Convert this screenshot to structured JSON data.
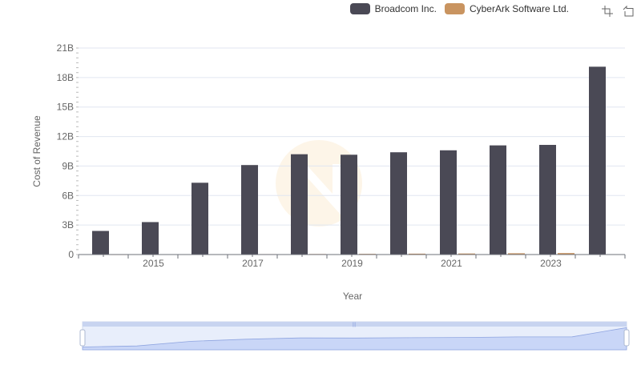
{
  "legend": [
    {
      "label": "Broadcom Inc.",
      "color": "#4a4955"
    },
    {
      "label": "CyberArk Software Ltd.",
      "color": "#c99460"
    }
  ],
  "toolbox": {
    "zoom_icon": "zoom-icon",
    "restore_icon": "restore-icon"
  },
  "chart_data": {
    "type": "bar",
    "xlabel": "Year",
    "ylabel": "Cost of Revenue",
    "categories": [
      "2014",
      "2015",
      "2016",
      "2017",
      "2018",
      "2019",
      "2020",
      "2021",
      "2022",
      "2023",
      "2024"
    ],
    "x_tick_labels": [
      "2015",
      "2017",
      "2019",
      "2021",
      "2023"
    ],
    "y_tick_labels": [
      "0",
      "3B",
      "6B",
      "9B",
      "12B",
      "15B",
      "18B",
      "21B"
    ],
    "ylim": [
      0,
      21000000000
    ],
    "grid": true,
    "legend_position": "top-right",
    "series": [
      {
        "name": "Broadcom Inc.",
        "color": "#4a4955",
        "values": [
          2400000000,
          3300000000,
          7300000000,
          9100000000,
          10200000000,
          10150000000,
          10400000000,
          10600000000,
          11100000000,
          11150000000,
          19100000000
        ]
      },
      {
        "name": "CyberArk Software Ltd.",
        "color": "#c99460",
        "values": [
          20000000,
          25000000,
          35000000,
          45000000,
          55000000,
          70000000,
          90000000,
          105000000,
          130000000,
          150000000,
          0
        ]
      }
    ]
  }
}
